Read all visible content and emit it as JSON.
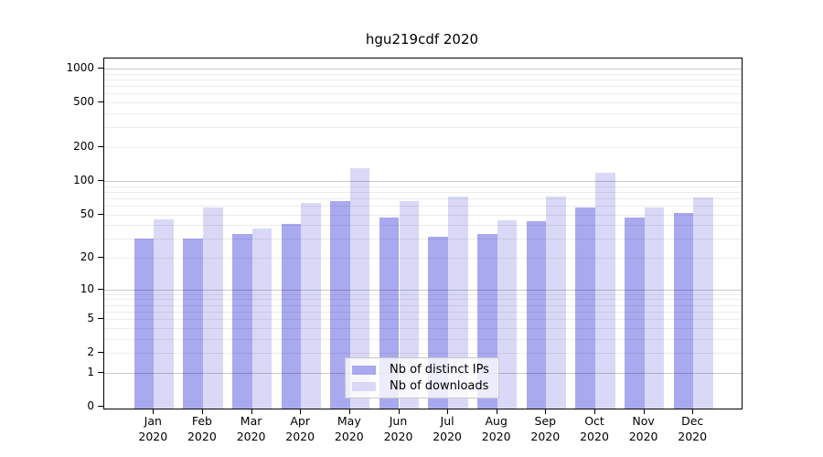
{
  "title": "hgu219cdf 2020",
  "chart_data": {
    "type": "bar",
    "title": "hgu219cdf 2020",
    "categories": [
      "Jan 2020",
      "Feb 2020",
      "Mar 2020",
      "Apr 2020",
      "May 2020",
      "Jun 2020",
      "Jul 2020",
      "Aug 2020",
      "Sep 2020",
      "Oct 2020",
      "Nov 2020",
      "Dec 2020"
    ],
    "series": [
      {
        "name": "Nb of distinct IPs",
        "color": "#a9a9f0",
        "values": [
          30,
          30,
          33,
          41,
          66,
          47,
          31,
          33,
          43,
          58,
          47,
          51
        ]
      },
      {
        "name": "Nb of downloads",
        "color": "#d9d9f7",
        "values": [
          45,
          58,
          37,
          64,
          130,
          66,
          72,
          44,
          72,
          119,
          58,
          71
        ]
      }
    ],
    "xlabel": "",
    "ylabel": "",
    "yscale": "log10(1+x)",
    "yticks": [
      0,
      1,
      2,
      5,
      10,
      20,
      50,
      100,
      200,
      500,
      1000
    ],
    "ylim": [
      0,
      1190
    ],
    "grid": true,
    "legend_position": "inside-bottom-center"
  },
  "colors": {
    "axis": "#000000",
    "grid_major": "#c7c7c7",
    "grid_minor": "#ebebeb",
    "legend_border": "#c8c8c8",
    "background": "#ffffff"
  }
}
